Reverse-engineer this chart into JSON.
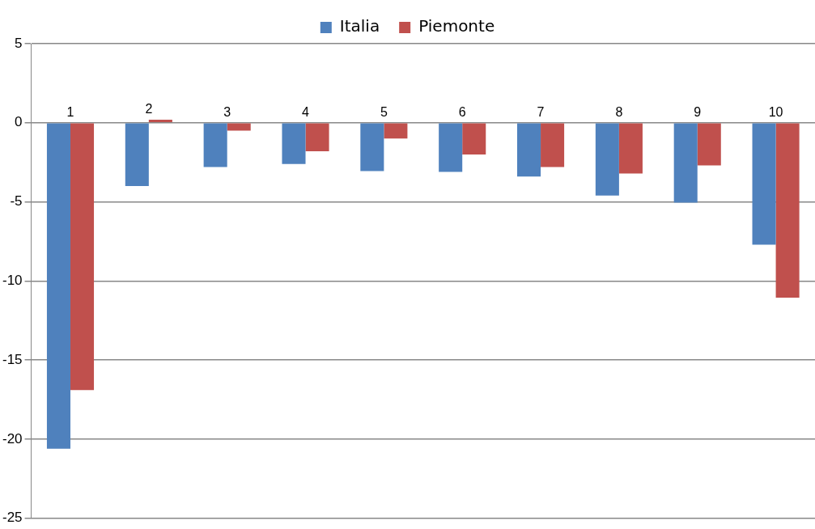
{
  "chart_data": {
    "type": "bar",
    "categories": [
      "1",
      "2",
      "3",
      "4",
      "5",
      "6",
      "7",
      "8",
      "9",
      "10"
    ],
    "series": [
      {
        "name": "Italia",
        "color": "#4f81bd",
        "values": [
          -20.6,
          -4.0,
          -2.8,
          -2.6,
          -3.05,
          -3.1,
          -3.4,
          -4.6,
          -5.05,
          -7.7
        ]
      },
      {
        "name": "Piemonte",
        "color": "#c0504d",
        "values": [
          -16.9,
          0.2,
          -0.5,
          -1.8,
          -1.0,
          -2.0,
          -2.8,
          -3.2,
          -2.7,
          -11.05
        ]
      }
    ],
    "ylim": [
      -25,
      5
    ],
    "yticks": [
      -25,
      -20,
      -15,
      -10,
      -5,
      0,
      5
    ],
    "grid": "y",
    "legend": "top"
  }
}
